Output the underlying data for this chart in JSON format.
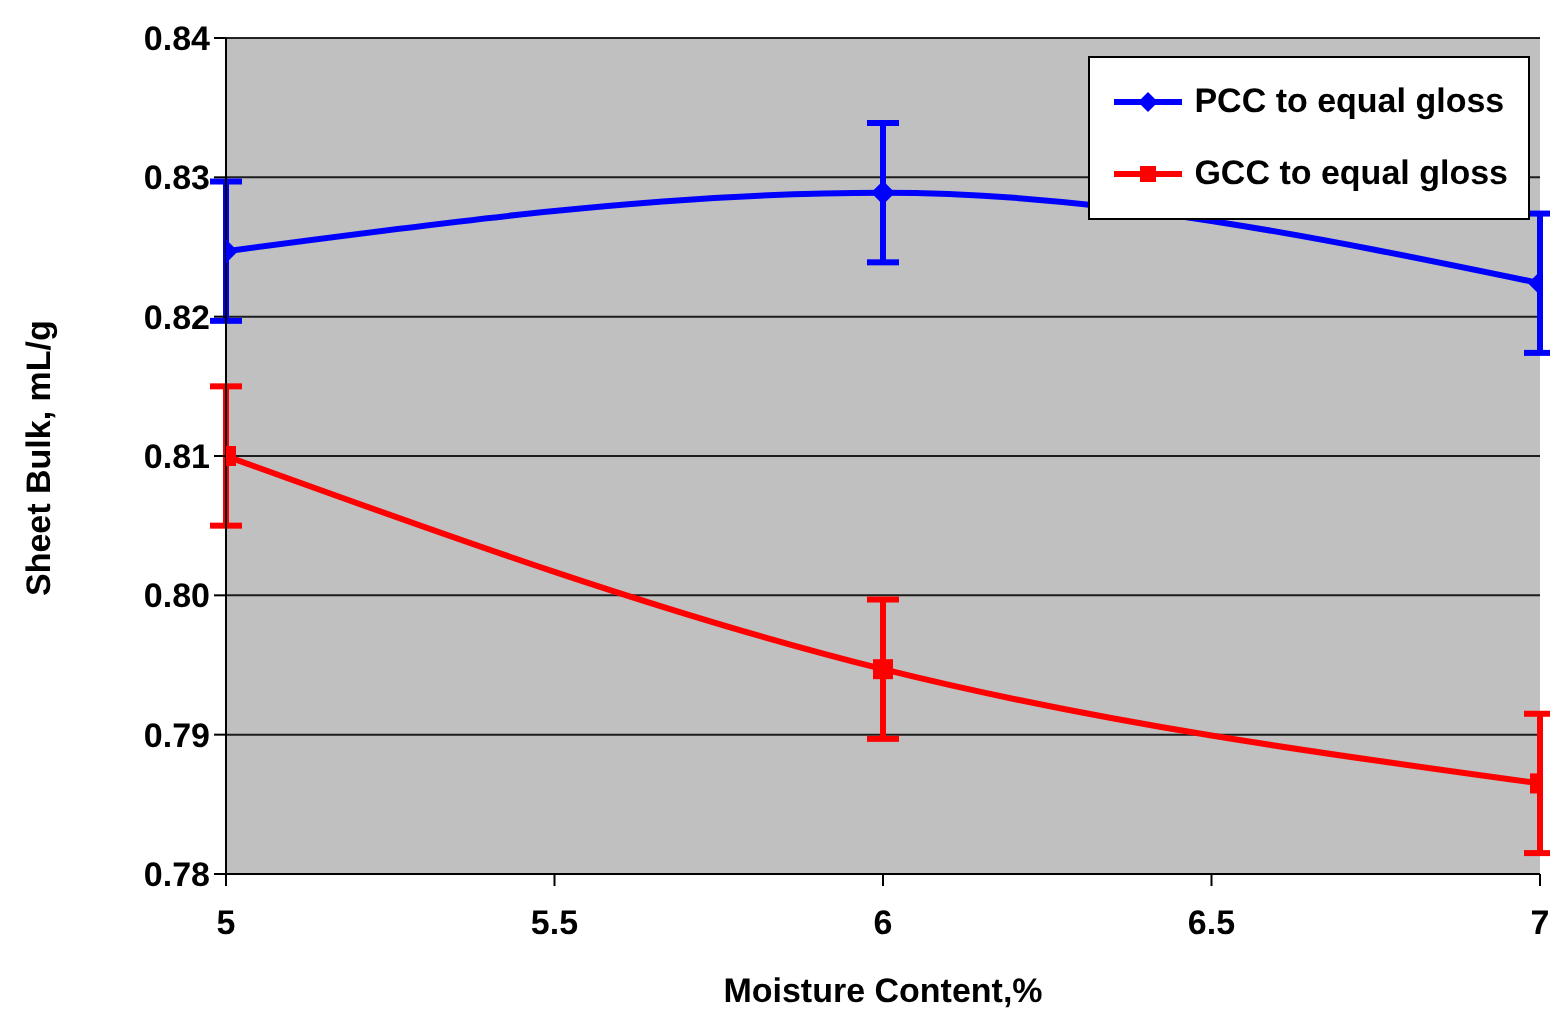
{
  "chart_data": {
    "type": "line",
    "xlabel": "Moisture Content,%",
    "ylabel": "Sheet Bulk, mL/g",
    "x": [
      5,
      6,
      7
    ],
    "series": [
      {
        "name": "PCC to equal gloss",
        "color": "#0000ff",
        "marker": "diamond",
        "values": [
          0.8247,
          0.8289,
          0.8224
        ],
        "errors": [
          0.005,
          0.005,
          0.005
        ]
      },
      {
        "name": "GCC to equal gloss",
        "color": "#ff0000",
        "marker": "square",
        "values": [
          0.81,
          0.7947,
          0.7865
        ],
        "errors": [
          0.005,
          0.005,
          0.005
        ]
      }
    ],
    "xlim": [
      5,
      7
    ],
    "xticks": [
      5,
      5.5,
      6,
      6.5,
      7
    ],
    "ylim": [
      0.78,
      0.84
    ],
    "yticks": [
      0.78,
      0.79,
      {
        "value": 0.8,
        "label": "0.80"
      },
      0.81,
      0.82,
      0.83,
      0.84
    ],
    "grid": "y",
    "legend": "top right"
  }
}
